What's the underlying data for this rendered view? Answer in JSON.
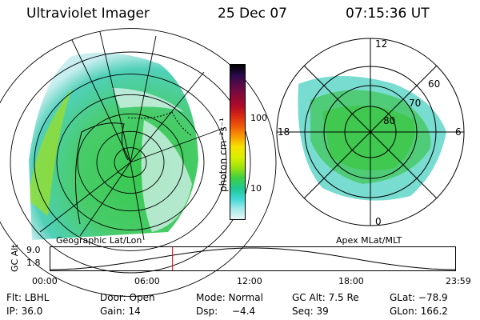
{
  "header": {
    "title": "Ultraviolet Imager",
    "date": "25 Dec 07",
    "time": "07:15:36 UT"
  },
  "colorbar": {
    "unit_label": "photon cm⁻²s⁻¹",
    "ticks": [
      "100",
      "10"
    ],
    "colors": [
      "#000000",
      "#2a0a4a",
      "#5a0a4a",
      "#8a0a3a",
      "#b00a28",
      "#d82814",
      "#f05a08",
      "#f8a000",
      "#f8e000",
      "#d8f000",
      "#98e010",
      "#40d040",
      "#20c890",
      "#40d8d8",
      "#a0e8e8",
      "#e8f8f8"
    ]
  },
  "left_panel": {
    "label": "Geographic Lat/Lon"
  },
  "right_panel": {
    "label": "Apex MLat/MLT",
    "lat_labels": [
      "60",
      "70",
      "80"
    ],
    "mlt_labels": {
      "top": "12",
      "left": "18",
      "right": "6",
      "bottom": "0"
    }
  },
  "altitude_plot": {
    "ylabel": "GC Alt",
    "yticks": [
      "9.0",
      "1.8"
    ],
    "xticks": [
      "00:00",
      "06:00",
      "12:00",
      "18:00",
      "23:59"
    ],
    "marker_time_hours": 7.26
  },
  "info": {
    "row1": [
      "Flt: LBHL",
      "Door: Open",
      "Mode: Normal",
      "GC Alt: 7.5 Re",
      "GLat: −78.9"
    ],
    "row2": [
      "IP: 36.0",
      "Gain: 14",
      "Dsp:",
      "−4.4",
      "Seq: 39",
      "GLon: 166.2"
    ]
  }
}
